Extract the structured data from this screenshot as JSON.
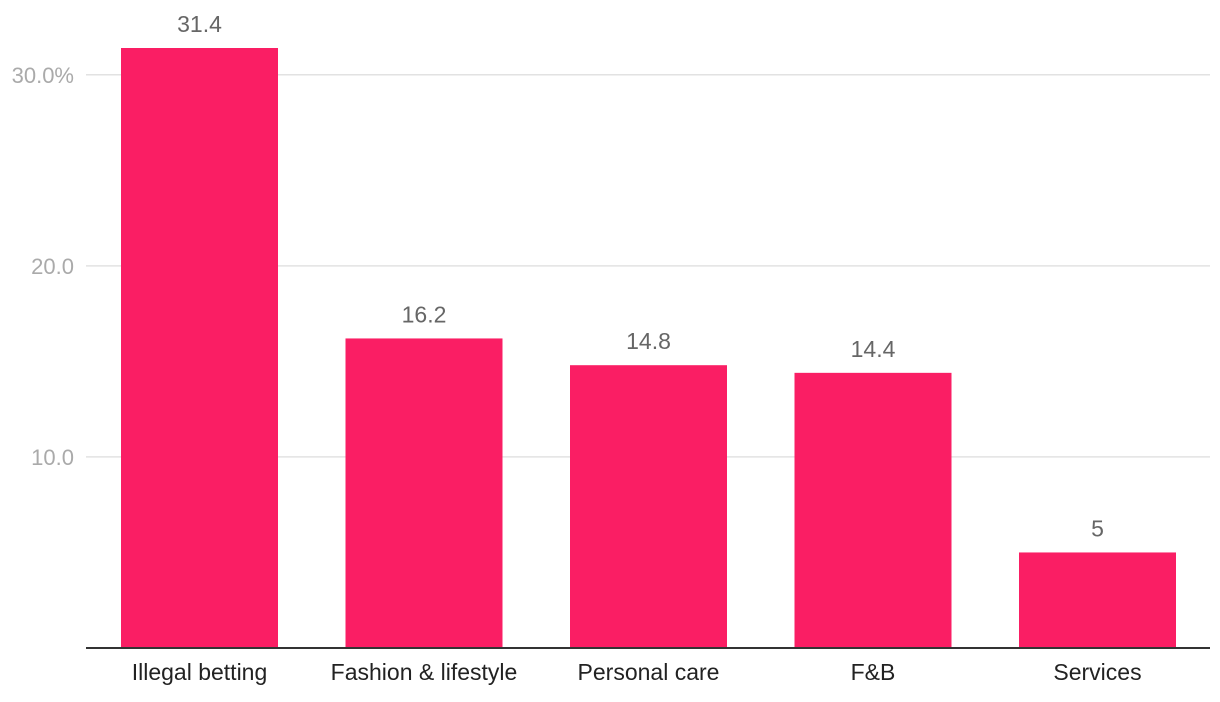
{
  "chart_data": {
    "type": "bar",
    "title": "",
    "xlabel": "",
    "ylabel": "",
    "categories": [
      "Illegal betting",
      "Fashion & lifestyle",
      "Personal care",
      "F&B",
      "Services"
    ],
    "values": [
      31.4,
      16.2,
      14.8,
      14.4,
      5
    ],
    "value_labels": [
      "31.4",
      "16.2",
      "14.8",
      "14.4",
      "5"
    ],
    "yticks": [
      10,
      20,
      30
    ],
    "ytick_labels": [
      "10.0",
      "20.0",
      "30.0%"
    ],
    "ylim": [
      0,
      31.4
    ],
    "grid": true,
    "legend": "none",
    "bar_color": "#fa1e64"
  }
}
